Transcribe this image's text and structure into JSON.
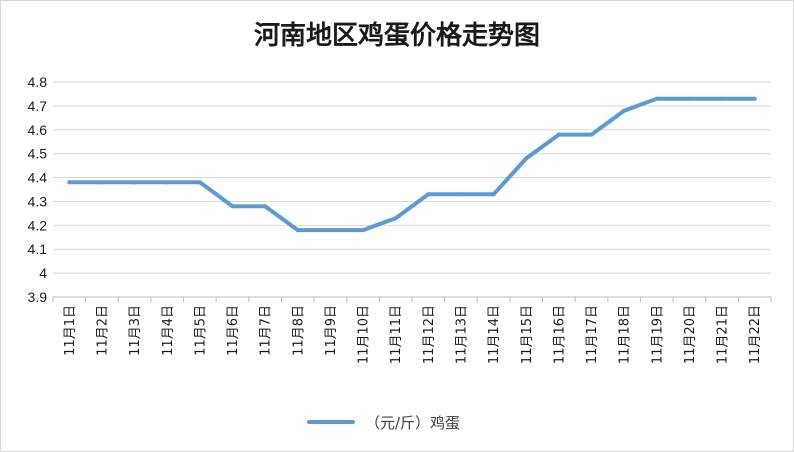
{
  "chart_data": {
    "type": "line",
    "title": "河南地区鸡蛋价格走势图",
    "categories": [
      "11月1日",
      "11月2日",
      "11月3日",
      "11月4日",
      "11月5日",
      "11月6日",
      "11月7日",
      "11月8日",
      "11月9日",
      "11月10日",
      "11月11日",
      "11月12日",
      "11月13日",
      "11月14日",
      "11月15日",
      "11月16日",
      "11月17日",
      "11月18日",
      "11月19日",
      "11月20日",
      "11月21日",
      "11月22日"
    ],
    "series": [
      {
        "name": "（元/斤）鸡蛋",
        "color": "#5b9bd5",
        "values": [
          4.38,
          4.38,
          4.38,
          4.38,
          4.38,
          4.28,
          4.28,
          4.18,
          4.18,
          4.18,
          4.23,
          4.33,
          4.33,
          4.33,
          4.48,
          4.58,
          4.58,
          4.68,
          4.73,
          4.73,
          4.73,
          4.73
        ]
      }
    ],
    "ylim": [
      3.9,
      4.8
    ],
    "yticks": [
      "3.9",
      "4",
      "4.1",
      "4.2",
      "4.3",
      "4.4",
      "4.5",
      "4.6",
      "4.7",
      "4.8"
    ],
    "grid": true,
    "legend_position": "bottom"
  }
}
